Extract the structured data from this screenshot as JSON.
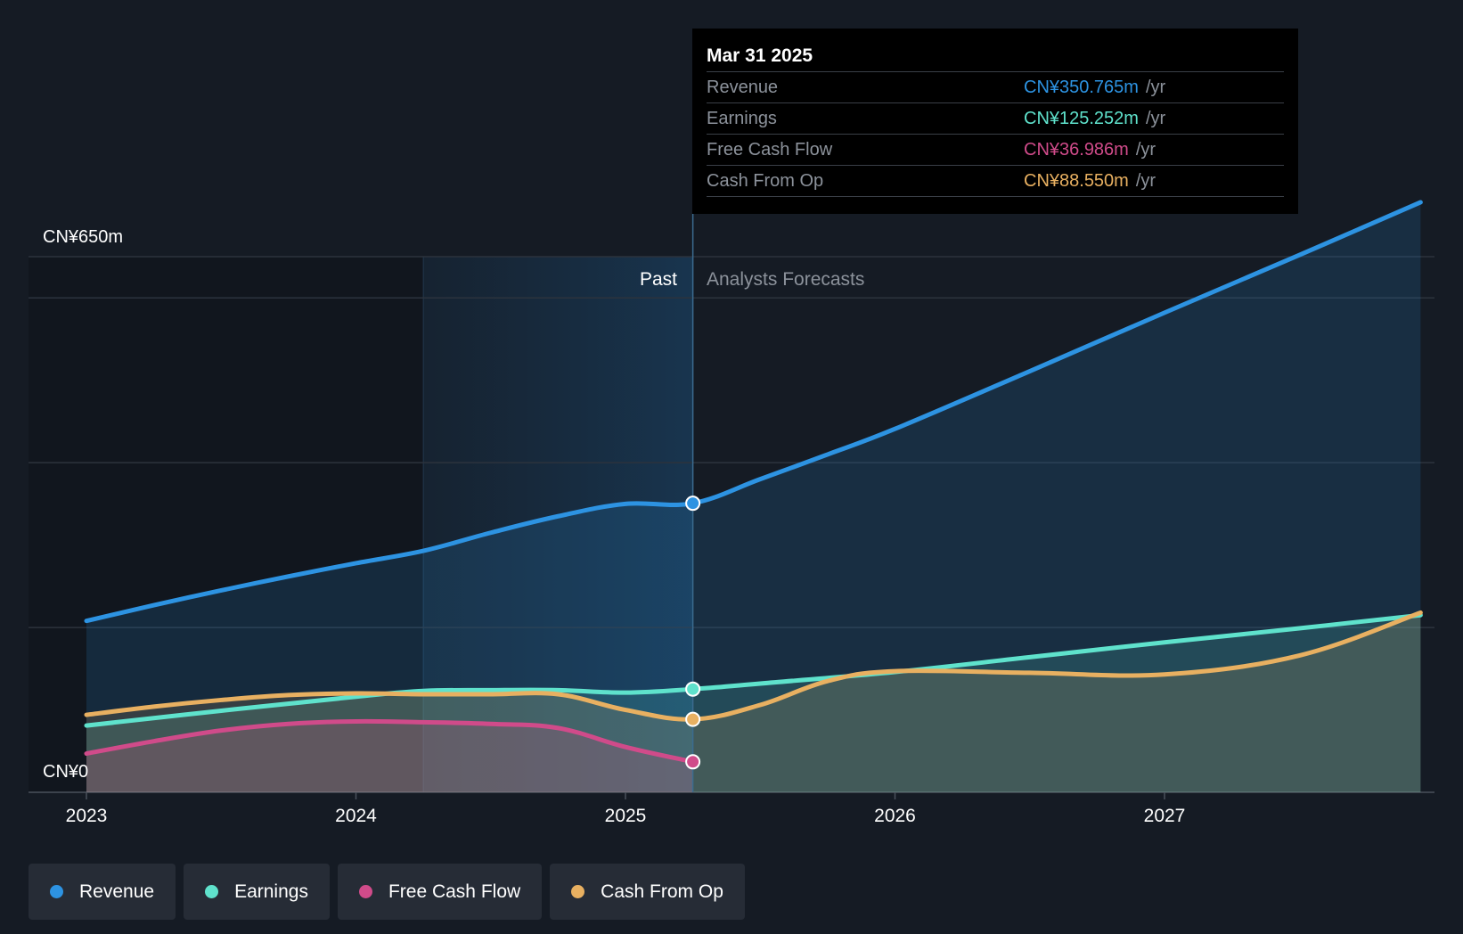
{
  "chart_data": {
    "type": "area",
    "title": "",
    "y_top_label": "CN¥650m",
    "y_bottom_label": "CN¥0",
    "ylim": [
      0,
      650
    ],
    "xlim": [
      2022.79,
      2027.95
    ],
    "x_ticks": [
      "2023",
      "2024",
      "2025",
      "2026",
      "2027"
    ],
    "x_tick_values": [
      2023,
      2024,
      2025,
      2026,
      2027
    ],
    "past_start": 2024.25,
    "divider": 2025.25,
    "past_label": "Past",
    "forecast_label": "Analysts Forecasts",
    "series": [
      {
        "name": "Revenue",
        "color": "#2d93e2",
        "x": [
          2023.0,
          2023.25,
          2023.5,
          2023.75,
          2024.0,
          2024.25,
          2024.5,
          2024.75,
          2025.0,
          2025.25,
          2025.5,
          2025.75,
          2026.0,
          2026.5,
          2027.0,
          2027.5,
          2027.95
        ],
        "values": [
          208,
          227,
          245,
          262,
          278,
          293,
          315,
          335,
          350,
          350.765,
          380,
          410,
          441,
          511,
          582,
          652,
          716
        ]
      },
      {
        "name": "Earnings",
        "color": "#5fe2cc",
        "x": [
          2023.0,
          2023.5,
          2024.0,
          2024.25,
          2024.5,
          2024.75,
          2025.0,
          2025.25,
          2025.5,
          2026.0,
          2026.5,
          2027.0,
          2027.5,
          2027.95
        ],
        "values": [
          81,
          99,
          116,
          123,
          124,
          124,
          121,
          125.252,
          132,
          146,
          164,
          182,
          199,
          215
        ]
      },
      {
        "name": "Free Cash Flow",
        "color": "#d04b8a",
        "x": [
          2023.0,
          2023.25,
          2023.5,
          2023.75,
          2024.0,
          2024.25,
          2024.5,
          2024.75,
          2025.0,
          2025.25
        ],
        "values": [
          47,
          62,
          75,
          83,
          86,
          85,
          83,
          78,
          55,
          36.986
        ]
      },
      {
        "name": "Cash From Op",
        "color": "#e8b061",
        "x": [
          2023.0,
          2023.25,
          2023.5,
          2023.75,
          2024.0,
          2024.25,
          2024.5,
          2024.75,
          2025.0,
          2025.25,
          2025.5,
          2025.75,
          2026.0,
          2026.5,
          2027.0,
          2027.5,
          2027.95
        ],
        "values": [
          94,
          104,
          112,
          118,
          120,
          119,
          119,
          119,
          100,
          88.55,
          106,
          135,
          147,
          145,
          143,
          166,
          218
        ]
      }
    ]
  },
  "tooltip": {
    "date": "Mar 31 2025",
    "unit": "/yr",
    "rows": [
      {
        "label": "Revenue",
        "value": "CN¥350.765m",
        "color": "#2d93e2"
      },
      {
        "label": "Earnings",
        "value": "CN¥125.252m",
        "color": "#5fe2cc"
      },
      {
        "label": "Free Cash Flow",
        "value": "CN¥36.986m",
        "color": "#d04b8a"
      },
      {
        "label": "Cash From Op",
        "value": "CN¥88.550m",
        "color": "#e8b061"
      }
    ]
  },
  "legend": [
    {
      "label": "Revenue",
      "color": "#2d93e2"
    },
    {
      "label": "Earnings",
      "color": "#5fe2cc"
    },
    {
      "label": "Free Cash Flow",
      "color": "#d04b8a"
    },
    {
      "label": "Cash From Op",
      "color": "#e8b061"
    }
  ]
}
